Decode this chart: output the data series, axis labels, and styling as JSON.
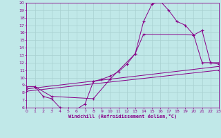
{
  "title": "",
  "xlabel": "Windchill (Refroidissement éolien,°C)",
  "bg_color": "#c0e8e8",
  "line_color": "#880088",
  "grid_color": "#a8d0d0",
  "xlim": [
    0,
    23
  ],
  "ylim": [
    6,
    20
  ],
  "xticks": [
    0,
    1,
    2,
    3,
    4,
    5,
    6,
    7,
    8,
    9,
    10,
    11,
    12,
    13,
    14,
    15,
    16,
    17,
    18,
    19,
    20,
    21,
    22,
    23
  ],
  "yticks": [
    6,
    7,
    8,
    9,
    10,
    11,
    12,
    13,
    14,
    15,
    16,
    17,
    18,
    19,
    20
  ],
  "line1_x": [
    1,
    2,
    3,
    4,
    5,
    6,
    7,
    8,
    9,
    10,
    11,
    12,
    13,
    14,
    15,
    16,
    17,
    18,
    19,
    20,
    21,
    22,
    23
  ],
  "line1_y": [
    8.8,
    7.5,
    7.2,
    6.0,
    5.9,
    5.8,
    6.5,
    9.5,
    9.8,
    10.2,
    10.8,
    11.8,
    13.2,
    17.5,
    19.8,
    20.2,
    19.0,
    17.5,
    17.0,
    15.7,
    16.3,
    12.0,
    11.8
  ],
  "line3_x": [
    0,
    1,
    3,
    8,
    10,
    13,
    14,
    20,
    21,
    22,
    23
  ],
  "line3_y": [
    8.8,
    8.8,
    7.5,
    7.2,
    9.8,
    13.2,
    15.8,
    15.7,
    12.0,
    12.0,
    12.0
  ],
  "line4_x": [
    0,
    23
  ],
  "line4_y": [
    8.5,
    11.5
  ],
  "line5_x": [
    0,
    23
  ],
  "line5_y": [
    8.2,
    11.0
  ]
}
